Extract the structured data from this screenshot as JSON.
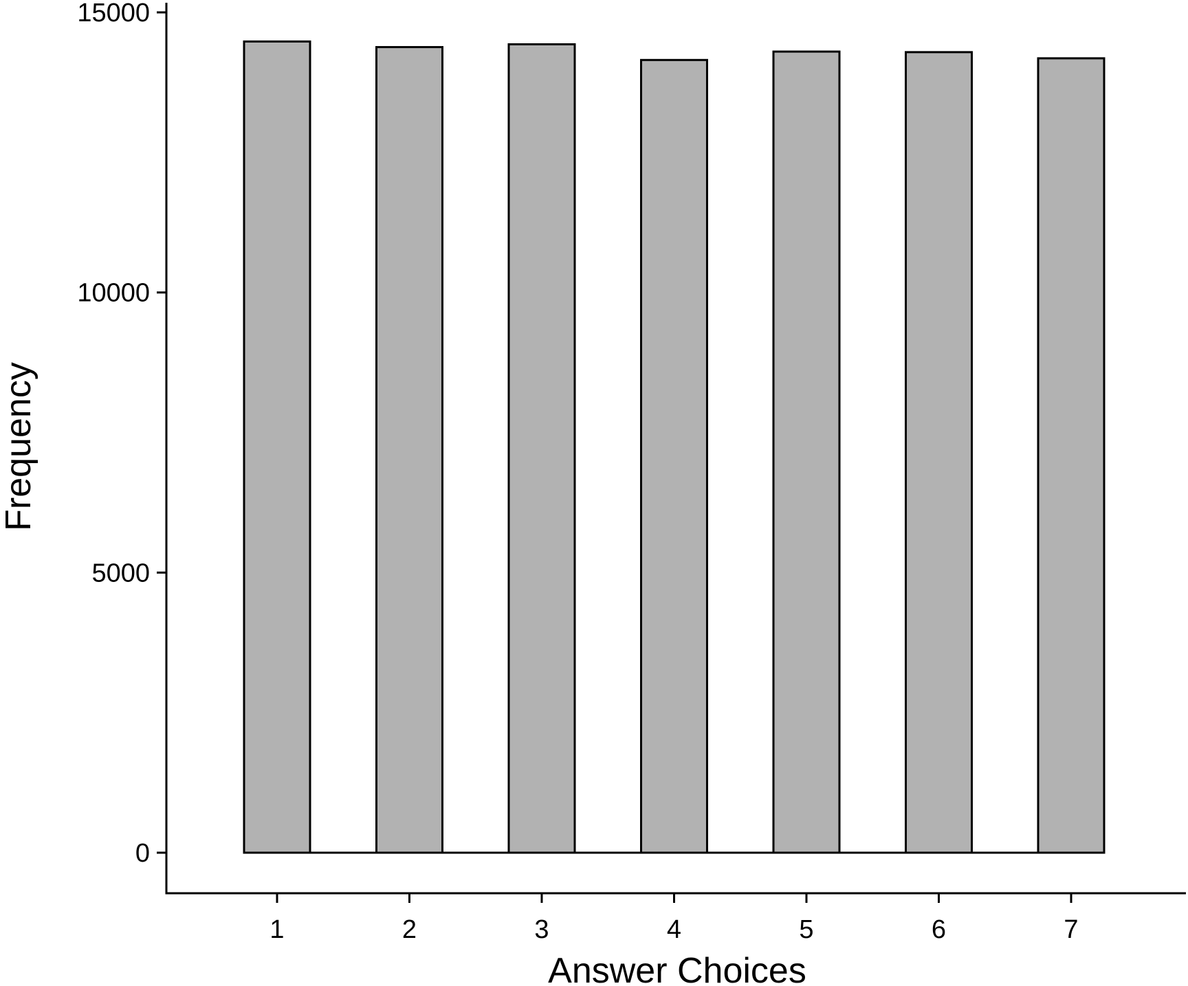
{
  "chart_data": {
    "type": "bar",
    "categories": [
      "1",
      "2",
      "3",
      "4",
      "5",
      "6",
      "7"
    ],
    "values": [
      14480,
      14380,
      14430,
      14150,
      14300,
      14290,
      14180
    ],
    "xlabel": "Answer Choices",
    "ylabel": "Frequency",
    "ylim": [
      0,
      15000
    ],
    "yticks": [
      "0",
      "5000",
      "10000",
      "15000"
    ],
    "grid": false,
    "legend": "none",
    "colors": {
      "bar_fill": "#b2b2b2",
      "bar_stroke": "#000000",
      "axis": "#000000"
    }
  }
}
